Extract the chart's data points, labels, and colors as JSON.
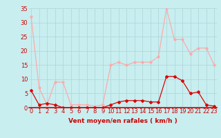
{
  "xlabel": "Vent moyen/en rafales ( km/h )",
  "bg_color": "#c8eef0",
  "grid_color": "#b0d8da",
  "x_values": [
    0,
    1,
    2,
    3,
    4,
    5,
    6,
    7,
    8,
    9,
    10,
    11,
    12,
    13,
    14,
    15,
    16,
    17,
    18,
    19,
    20,
    21,
    22,
    23
  ],
  "rafales": [
    32,
    7,
    1,
    9,
    9,
    1,
    1,
    1,
    0.5,
    1,
    15,
    16,
    15,
    16,
    16,
    16,
    18,
    35,
    24,
    24,
    19,
    21,
    21,
    15
  ],
  "moyen": [
    6,
    1,
    1.5,
    1,
    0,
    0,
    0,
    0,
    0,
    0,
    1,
    2,
    2.5,
    2.5,
    2.5,
    2,
    2,
    11,
    11,
    9.5,
    5,
    5.5,
    1,
    0.5
  ],
  "rafales_color": "#ffaaaa",
  "moyen_color": "#dd0000",
  "ylim": [
    0,
    35
  ],
  "yticks": [
    0,
    5,
    10,
    15,
    20,
    25,
    30,
    35
  ],
  "xlim": [
    -0.3,
    23.3
  ],
  "tick_color": "#cc0000",
  "label_fontsize": 6.5,
  "tick_fontsize": 6,
  "axis_color": "#cc0000"
}
